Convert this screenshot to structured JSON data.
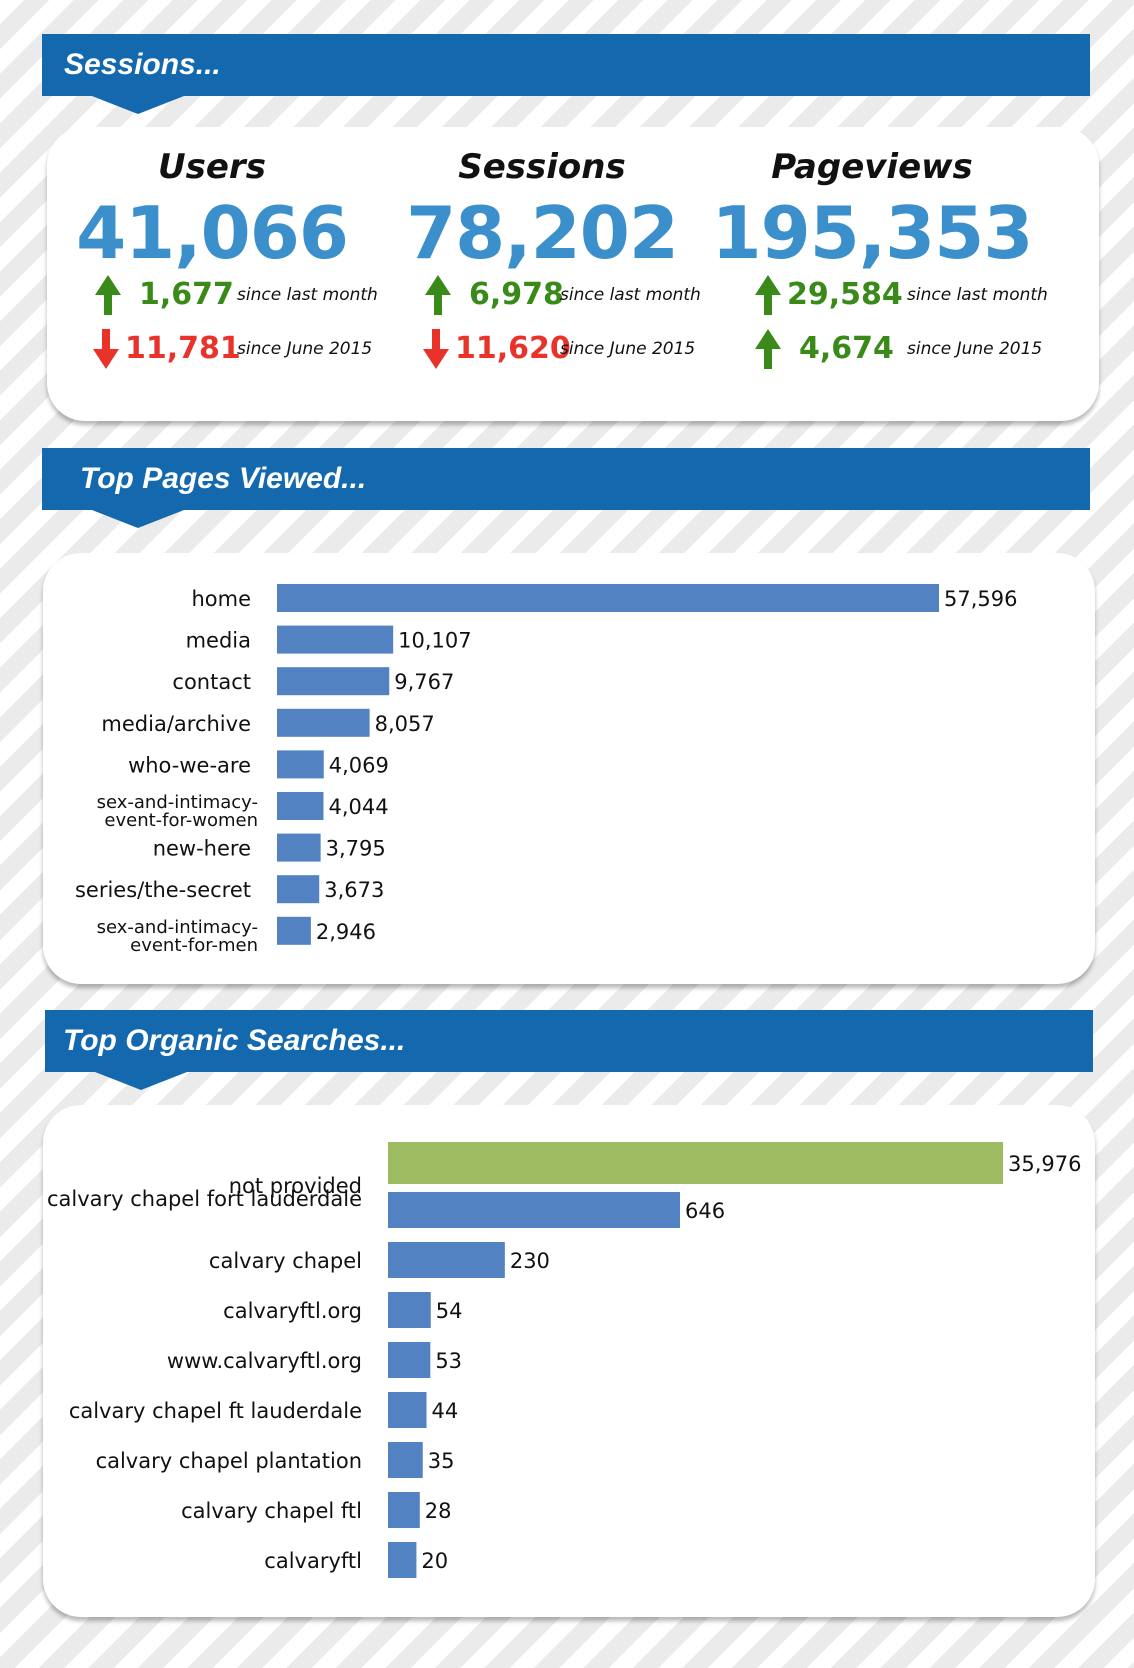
{
  "colors": {
    "banner": "#1468ad",
    "stat_value": "#3b8fcb",
    "increase": "#3a8a1a",
    "decrease": "#e8322a",
    "bar": "#5282c1",
    "highlight_bar": "#9dbb61"
  },
  "sections": {
    "sessions_title": "Sessions...",
    "pages_title": "Top Pages Viewed...",
    "searches_title": "Top Organic Searches..."
  },
  "stats": [
    {
      "title": "Users",
      "value": "41,066",
      "deltas": [
        {
          "direction": "up",
          "value": "1,677",
          "label": "since last month"
        },
        {
          "direction": "down",
          "value": "11,781",
          "label": "since June 2015"
        }
      ]
    },
    {
      "title": "Sessions",
      "value": "78,202",
      "deltas": [
        {
          "direction": "up",
          "value": "6,978",
          "label": "since last month"
        },
        {
          "direction": "down",
          "value": "11,620",
          "label": "since June 2015"
        }
      ]
    },
    {
      "title": "Pageviews",
      "value": "195,353",
      "deltas": [
        {
          "direction": "up",
          "value": "29,584",
          "label": "since last month"
        },
        {
          "direction": "up",
          "value": "4,674",
          "label": "since June 2015"
        }
      ]
    }
  ],
  "chart_data": [
    {
      "type": "bar",
      "orientation": "horizontal",
      "title": "Top Pages Viewed...",
      "categories": [
        "home",
        "media",
        "contact",
        "media/archive",
        "who-we-are",
        "sex-and-intimacy-\nevent-for-women",
        "new-here",
        "series/the-secret",
        "sex-and-intimacy-\nevent-for-men"
      ],
      "values": [
        57596,
        10107,
        9767,
        8057,
        4069,
        4044,
        3795,
        3673,
        2946
      ],
      "value_labels": [
        "57,596",
        "10,107",
        "9,767",
        "8,057",
        "4,069",
        "4,044",
        "3,795",
        "3,673",
        "2,946"
      ],
      "grid": false,
      "legend": "none"
    },
    {
      "type": "bar",
      "orientation": "horizontal",
      "title": "Top Organic Searches...",
      "categories": [
        "not provided",
        "calvary chapel fort lauderdale",
        "calvary chapel",
        "calvaryftl.org",
        "www.calvaryftl.org",
        "calvary chapel ft lauderdale",
        "calvary chapel plantation",
        "calvary chapel ftl",
        "calvaryftl"
      ],
      "values": [
        35976,
        646,
        230,
        54,
        53,
        44,
        35,
        28,
        20
      ],
      "value_labels": [
        "35,976",
        "646",
        "230",
        "54",
        "53",
        "44",
        "35",
        "28",
        "20"
      ],
      "highlight_index": 0,
      "axis_note": "non-linear bar scale",
      "grid": false,
      "legend": "none"
    }
  ]
}
